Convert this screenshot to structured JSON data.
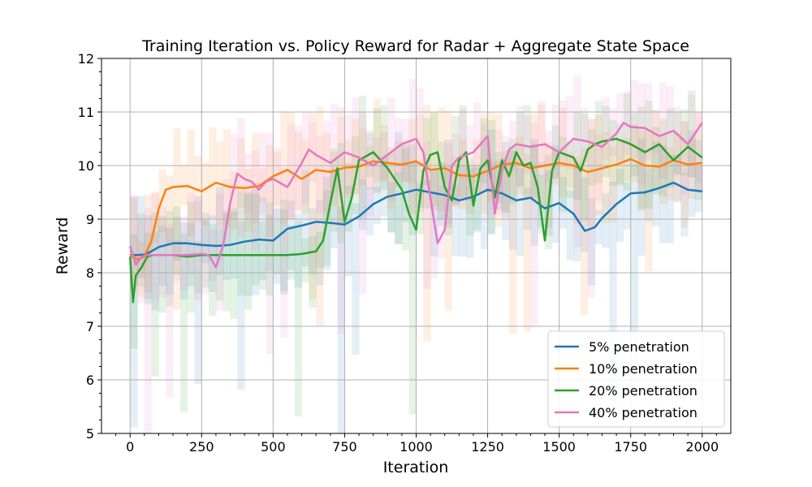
{
  "chart_data": {
    "type": "line",
    "title": "Training Iteration vs. Policy Reward for Radar + Aggregate State Space",
    "xlabel": "Iteration",
    "ylabel": "Reward",
    "xlim": [
      -100,
      2100
    ],
    "ylim": [
      5,
      12
    ],
    "xticks": [
      0,
      250,
      500,
      750,
      1000,
      1250,
      1500,
      1750,
      2000
    ],
    "yticks": [
      5,
      6,
      7,
      8,
      9,
      10,
      11,
      12
    ],
    "grid": true,
    "legend_position": "bottom-right",
    "series": [
      {
        "name": "5% penetration",
        "color": "#1f77b4",
        "x": [
          0,
          25,
          50,
          75,
          100,
          150,
          200,
          250,
          300,
          350,
          400,
          450,
          500,
          550,
          600,
          650,
          700,
          750,
          800,
          850,
          900,
          950,
          1000,
          1050,
          1100,
          1150,
          1200,
          1250,
          1300,
          1350,
          1400,
          1450,
          1500,
          1550,
          1590,
          1625,
          1650,
          1700,
          1750,
          1800,
          1850,
          1900,
          1950,
          2000
        ],
        "y": [
          8.33,
          8.33,
          8.34,
          8.4,
          8.48,
          8.55,
          8.55,
          8.52,
          8.5,
          8.52,
          8.58,
          8.62,
          8.6,
          8.82,
          8.88,
          8.95,
          8.93,
          8.9,
          9.05,
          9.28,
          9.42,
          9.48,
          9.55,
          9.5,
          9.45,
          9.35,
          9.42,
          9.55,
          9.48,
          9.35,
          9.4,
          9.2,
          9.3,
          9.1,
          8.78,
          8.85,
          9.02,
          9.28,
          9.48,
          9.5,
          9.58,
          9.68,
          9.55,
          9.52
        ]
      },
      {
        "name": "10% penetration",
        "color": "#ff7f0e",
        "x": [
          0,
          25,
          50,
          75,
          100,
          125,
          150,
          200,
          250,
          300,
          350,
          400,
          450,
          500,
          550,
          600,
          650,
          700,
          750,
          800,
          850,
          900,
          950,
          1000,
          1050,
          1100,
          1150,
          1200,
          1250,
          1300,
          1350,
          1400,
          1450,
          1500,
          1550,
          1600,
          1650,
          1700,
          1750,
          1800,
          1850,
          1900,
          1950,
          2000
        ],
        "y": [
          8.33,
          8.25,
          8.3,
          8.6,
          9.2,
          9.55,
          9.6,
          9.62,
          9.52,
          9.68,
          9.6,
          9.58,
          9.62,
          9.8,
          9.92,
          9.75,
          9.92,
          9.88,
          9.96,
          9.98,
          10.08,
          10.05,
          10.02,
          10.08,
          9.92,
          9.95,
          9.82,
          9.8,
          9.9,
          10.02,
          10.05,
          9.95,
          10.0,
          10.05,
          10.0,
          9.88,
          9.95,
          10.02,
          10.12,
          10.0,
          9.98,
          10.1,
          10.02,
          10.05
        ]
      },
      {
        "name": "20% penetration",
        "color": "#2ca02c",
        "x": [
          0,
          10,
          20,
          40,
          60,
          80,
          100,
          150,
          200,
          250,
          300,
          350,
          400,
          450,
          500,
          550,
          600,
          650,
          675,
          700,
          725,
          750,
          775,
          800,
          850,
          900,
          950,
          975,
          1000,
          1025,
          1050,
          1075,
          1100,
          1125,
          1150,
          1175,
          1200,
          1225,
          1250,
          1275,
          1300,
          1325,
          1350,
          1375,
          1400,
          1425,
          1450,
          1475,
          1500,
          1550,
          1575,
          1600,
          1625,
          1650,
          1700,
          1750,
          1800,
          1850,
          1900,
          1950,
          2000
        ],
        "y": [
          8.3,
          7.45,
          7.95,
          8.1,
          8.3,
          8.33,
          8.33,
          8.33,
          8.3,
          8.33,
          8.33,
          8.33,
          8.33,
          8.33,
          8.33,
          8.33,
          8.35,
          8.4,
          8.6,
          9.3,
          9.95,
          8.95,
          9.4,
          10.1,
          10.25,
          9.95,
          9.55,
          9.1,
          8.8,
          9.9,
          10.2,
          10.25,
          9.6,
          9.35,
          10.1,
          10.25,
          9.25,
          9.95,
          10.1,
          9.4,
          10.1,
          9.8,
          10.25,
          10.0,
          10.05,
          9.6,
          8.6,
          9.9,
          10.25,
          10.15,
          9.9,
          10.3,
          10.4,
          10.45,
          10.5,
          10.4,
          10.25,
          10.4,
          10.1,
          10.35,
          10.15
        ]
      },
      {
        "name": "40% penetration",
        "color": "#e377c2",
        "x": [
          0,
          20,
          40,
          60,
          100,
          150,
          200,
          250,
          275,
          300,
          325,
          350,
          375,
          400,
          425,
          450,
          475,
          500,
          550,
          600,
          625,
          650,
          700,
          750,
          800,
          850,
          900,
          950,
          1000,
          1025,
          1050,
          1075,
          1100,
          1125,
          1150,
          1200,
          1225,
          1250,
          1275,
          1300,
          1325,
          1350,
          1400,
          1450,
          1500,
          1550,
          1600,
          1650,
          1700,
          1725,
          1750,
          1800,
          1850,
          1900,
          1950,
          2000
        ],
        "y": [
          8.5,
          8.15,
          8.3,
          8.33,
          8.33,
          8.33,
          8.33,
          8.35,
          8.33,
          8.1,
          8.5,
          9.3,
          9.85,
          9.75,
          9.7,
          9.55,
          9.7,
          9.75,
          9.6,
          10.05,
          10.3,
          10.2,
          10.05,
          10.25,
          10.15,
          10.0,
          10.2,
          10.4,
          10.5,
          10.25,
          9.4,
          8.55,
          8.8,
          10.0,
          10.15,
          10.25,
          10.4,
          10.55,
          9.1,
          9.9,
          10.3,
          10.4,
          10.35,
          10.4,
          10.25,
          10.5,
          10.45,
          10.35,
          10.6,
          10.8,
          10.72,
          10.7,
          10.55,
          10.65,
          10.4,
          10.8
        ]
      }
    ]
  }
}
